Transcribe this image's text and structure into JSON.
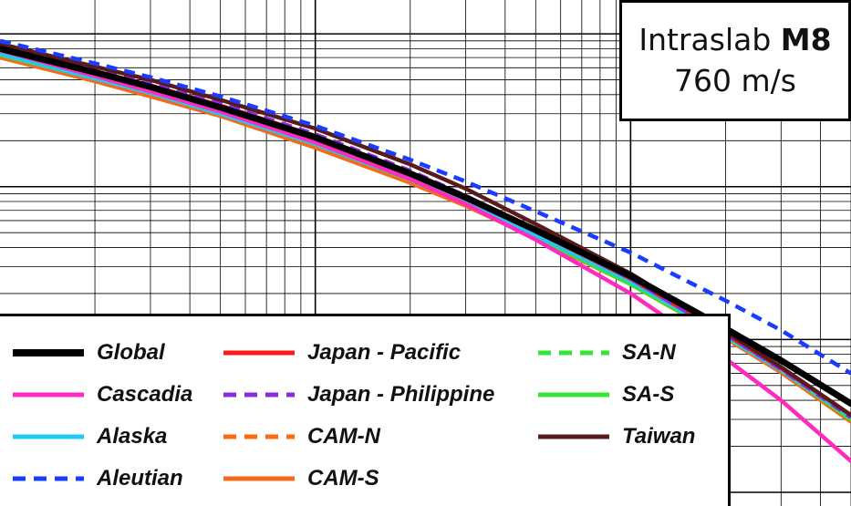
{
  "chart_data": {
    "type": "line",
    "title_line1": "Intraslab",
    "title_mag": "M8",
    "title_line2": "760 m/s",
    "xscale": "log",
    "yscale": "log",
    "grid": true,
    "legend_position": "bottom-left",
    "x": [
      1,
      2,
      3,
      5,
      10,
      20,
      30,
      50,
      100,
      200,
      300,
      500
    ],
    "series": [
      {
        "name": "Global",
        "color": "#000000",
        "style": "solid",
        "values": [
          0.8,
          0.56,
          0.45,
          0.33,
          0.21,
          0.122,
          0.085,
          0.052,
          0.026,
          0.0118,
          0.0073,
          0.0038
        ]
      },
      {
        "name": "Cascadia",
        "color": "#ff2bbf",
        "style": "solid",
        "values": [
          0.78,
          0.53,
          0.42,
          0.31,
          0.195,
          0.112,
          0.077,
          0.045,
          0.02,
          0.0075,
          0.004,
          0.0016
        ]
      },
      {
        "name": "Alaska",
        "color": "#22c8f0",
        "style": "solid",
        "values": [
          0.74,
          0.51,
          0.41,
          0.3,
          0.19,
          0.112,
          0.079,
          0.048,
          0.024,
          0.0105,
          0.0063,
          0.0031
        ]
      },
      {
        "name": "Aleutian",
        "color": "#1a3cff",
        "style": "dashed",
        "values": [
          0.9,
          0.64,
          0.52,
          0.39,
          0.25,
          0.15,
          0.108,
          0.069,
          0.037,
          0.018,
          0.0115,
          0.006
        ]
      },
      {
        "name": "Japan - Pacific",
        "color": "#ff1a1a",
        "style": "solid",
        "values": [
          0.82,
          0.57,
          0.46,
          0.34,
          0.215,
          0.124,
          0.086,
          0.051,
          0.025,
          0.0108,
          0.0065,
          0.0032
        ]
      },
      {
        "name": "Japan - Philippine",
        "color": "#8a2be2",
        "style": "dashed",
        "values": [
          0.84,
          0.59,
          0.47,
          0.35,
          0.22,
          0.127,
          0.087,
          0.052,
          0.025,
          0.0108,
          0.0064,
          0.0031
        ]
      },
      {
        "name": "CAM-N",
        "color": "#ff6a10",
        "style": "dashed",
        "values": [
          0.72,
          0.5,
          0.4,
          0.295,
          0.185,
          0.108,
          0.076,
          0.046,
          0.023,
          0.0103,
          0.0062,
          0.003
        ]
      },
      {
        "name": "CAM-S",
        "color": "#f26a1b",
        "style": "solid",
        "values": [
          0.7,
          0.49,
          0.39,
          0.29,
          0.18,
          0.106,
          0.075,
          0.046,
          0.023,
          0.0102,
          0.0061,
          0.0029
        ]
      },
      {
        "name": "SA-N",
        "color": "#33e633",
        "style": "dashed",
        "values": [
          0.76,
          0.52,
          0.42,
          0.31,
          0.195,
          0.114,
          0.08,
          0.048,
          0.024,
          0.0106,
          0.0064,
          0.0031
        ]
      },
      {
        "name": "SA-S",
        "color": "#33e633",
        "style": "solid",
        "values": [
          0.73,
          0.51,
          0.41,
          0.3,
          0.19,
          0.111,
          0.078,
          0.047,
          0.023,
          0.0104,
          0.0063,
          0.003
        ]
      },
      {
        "name": "Taiwan",
        "color": "#5a1a1a",
        "style": "solid",
        "values": [
          0.86,
          0.61,
          0.5,
          0.37,
          0.24,
          0.14,
          0.097,
          0.057,
          0.027,
          0.0112,
          0.0066,
          0.0032
        ]
      }
    ]
  }
}
